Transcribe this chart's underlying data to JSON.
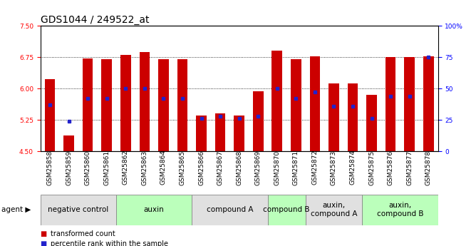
{
  "title": "GDS1044 / 249522_at",
  "samples": [
    "GSM25858",
    "GSM25859",
    "GSM25860",
    "GSM25861",
    "GSM25862",
    "GSM25863",
    "GSM25864",
    "GSM25865",
    "GSM25866",
    "GSM25867",
    "GSM25868",
    "GSM25869",
    "GSM25870",
    "GSM25871",
    "GSM25872",
    "GSM25873",
    "GSM25874",
    "GSM25875",
    "GSM25876",
    "GSM25877",
    "GSM25878"
  ],
  "bar_heights": [
    6.22,
    4.88,
    6.72,
    6.7,
    6.8,
    6.88,
    6.7,
    6.7,
    5.35,
    5.4,
    5.35,
    5.93,
    6.9,
    6.7,
    6.77,
    6.12,
    6.12,
    5.85,
    6.75,
    6.75,
    6.77
  ],
  "percentile_ranks": [
    37,
    24,
    42,
    42,
    50,
    50,
    42,
    42,
    26,
    28,
    26,
    28,
    50,
    42,
    47,
    36,
    36,
    26,
    44,
    44,
    75
  ],
  "ymin": 4.5,
  "ymax": 7.5,
  "yticks_left": [
    4.5,
    5.25,
    6.0,
    6.75,
    7.5
  ],
  "yticks_right": [
    0,
    25,
    50,
    75,
    100
  ],
  "bar_color": "#cc0000",
  "dot_color": "#2222cc",
  "agent_groups": [
    {
      "label": "negative control",
      "start": 0,
      "end": 4,
      "color": "#e0e0e0"
    },
    {
      "label": "auxin",
      "start": 4,
      "end": 8,
      "color": "#bbffbb"
    },
    {
      "label": "compound A",
      "start": 8,
      "end": 12,
      "color": "#e0e0e0"
    },
    {
      "label": "compound B",
      "start": 12,
      "end": 14,
      "color": "#bbffbb"
    },
    {
      "label": "auxin,\ncompound A",
      "start": 14,
      "end": 17,
      "color": "#e0e0e0"
    },
    {
      "label": "auxin,\ncompound B",
      "start": 17,
      "end": 21,
      "color": "#bbffbb"
    }
  ],
  "legend_items": [
    {
      "label": "transformed count",
      "color": "#cc0000"
    },
    {
      "label": "percentile rank within the sample",
      "color": "#2222cc"
    }
  ],
  "bar_width": 0.55,
  "title_fontsize": 10,
  "tick_fontsize": 6.5,
  "agent_fontsize": 7.5
}
